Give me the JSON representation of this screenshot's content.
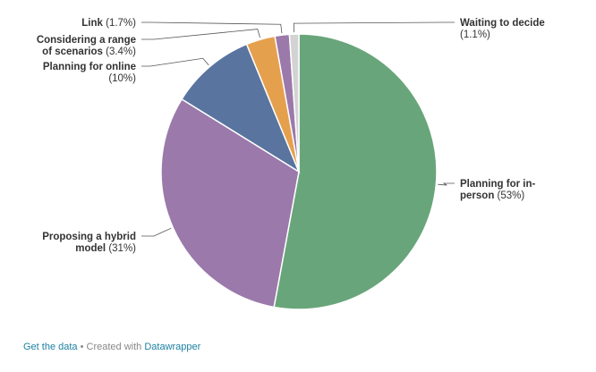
{
  "chart_data": {
    "type": "pie",
    "title": "",
    "slices": [
      {
        "name": "Planning for in-person",
        "label_lines": [
          "Planning for in-",
          "person"
        ],
        "value_text": "(53%)",
        "value": 53,
        "color": "#69a57a"
      },
      {
        "name": "Proposing a hybrid model",
        "label_lines": [
          "Proposing a hybrid",
          "model"
        ],
        "value_text": "(31%)",
        "value": 31,
        "color": "#9b79ab"
      },
      {
        "name": "Planning for online",
        "label_lines": [
          "Planning for online"
        ],
        "value_text": "(10%)",
        "value": 10,
        "color": "#58749f"
      },
      {
        "name": "Considering a range of scenarios",
        "label_lines": [
          "Considering a range",
          "of scenarios"
        ],
        "value_text": "(3.4%)",
        "value": 3.4,
        "color": "#e5a04e"
      },
      {
        "name": "Link",
        "label_lines": [
          "Link"
        ],
        "value_text": "(1.7%)",
        "value": 1.7,
        "color": "#9b79ab"
      },
      {
        "name": "Waiting to decide",
        "label_lines": [
          "Waiting to decide"
        ],
        "value_text": "(1.1%)",
        "value": 1.1,
        "color": "#d3d3d3"
      }
    ]
  },
  "footer": {
    "get_data": "Get the data",
    "separator": " • Created with ",
    "tool": "Datawrapper"
  }
}
